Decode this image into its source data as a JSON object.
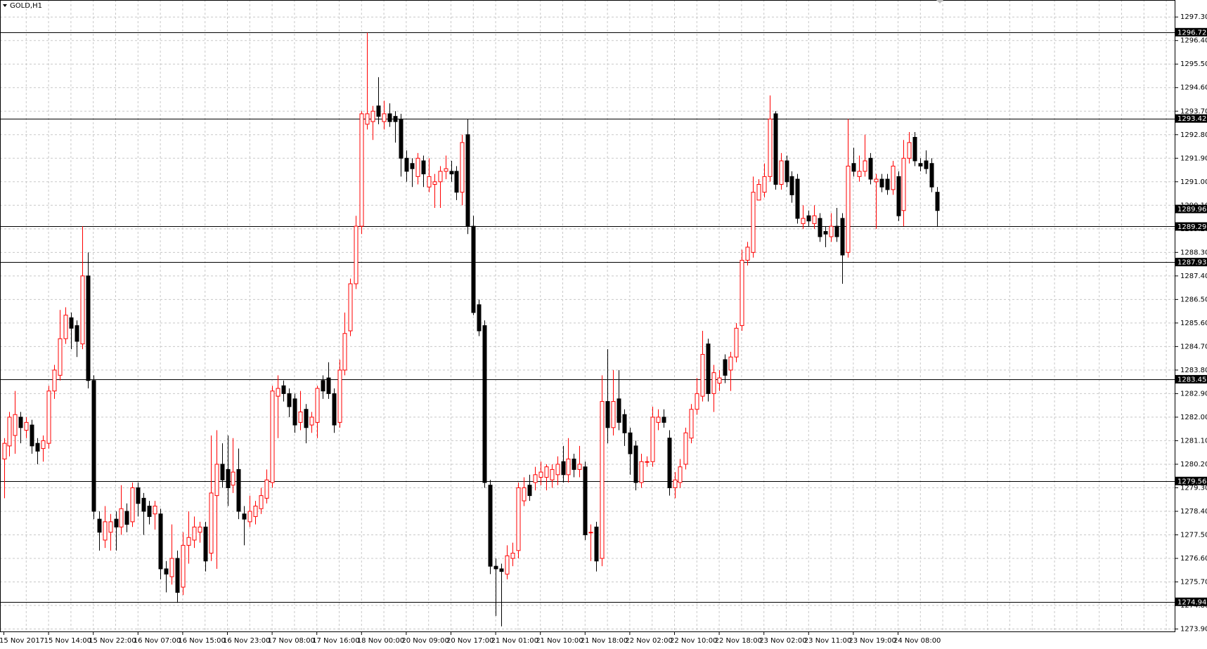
{
  "chart_data": {
    "type": "candlestick",
    "title": "GOLD,H1",
    "up_color": "#ff0000",
    "down_color": "#000000",
    "grid": true,
    "ylim": [
      1273.78,
      1297.95
    ],
    "yticks": [
      {
        "value": 1273.9,
        "label": "1273.90"
      },
      {
        "value": 1274.8,
        "label": "1274.80"
      },
      {
        "value": 1275.7,
        "label": "1275.70"
      },
      {
        "value": 1276.6,
        "label": "1276.60"
      },
      {
        "value": 1277.5,
        "label": "1277.50"
      },
      {
        "value": 1278.4,
        "label": "1278.40"
      },
      {
        "value": 1279.3,
        "label": "1279.30"
      },
      {
        "value": 1280.2,
        "label": "1280.20"
      },
      {
        "value": 1281.1,
        "label": "1281.10"
      },
      {
        "value": 1282.0,
        "label": "1282.00"
      },
      {
        "value": 1282.9,
        "label": "1282.90"
      },
      {
        "value": 1283.8,
        "label": "1283.80"
      },
      {
        "value": 1284.7,
        "label": "1284.70"
      },
      {
        "value": 1285.6,
        "label": "1285.60"
      },
      {
        "value": 1286.5,
        "label": "1286.50"
      },
      {
        "value": 1287.4,
        "label": "1287.40"
      },
      {
        "value": 1288.3,
        "label": "1288.30"
      },
      {
        "value": 1289.2,
        "label": "1289.20"
      },
      {
        "value": 1290.1,
        "label": "1290.10"
      },
      {
        "value": 1291.0,
        "label": "1291.00"
      },
      {
        "value": 1291.9,
        "label": "1291.90"
      },
      {
        "value": 1292.8,
        "label": "1292.80"
      },
      {
        "value": 1293.7,
        "label": "1293.70"
      },
      {
        "value": 1294.6,
        "label": "1294.60"
      },
      {
        "value": 1295.5,
        "label": "1295.50"
      },
      {
        "value": 1296.4,
        "label": "1296.40"
      },
      {
        "value": 1297.3,
        "label": "1297.30"
      }
    ],
    "levels": [
      1296.72,
      1293.42,
      1289.29,
      1287.93,
      1283.45,
      1279.56,
      1274.94
    ],
    "bid": 1289.96,
    "categories": [
      "15 Nov 2017",
      null,
      null,
      null,
      null,
      null,
      null,
      null,
      "15 Nov 14:00",
      null,
      null,
      null,
      null,
      null,
      null,
      null,
      "15 Nov 22:00",
      null,
      null,
      null,
      null,
      null,
      null,
      null,
      "16 Nov 07:00",
      null,
      null,
      null,
      null,
      null,
      null,
      null,
      "16 Nov 15:00",
      null,
      null,
      null,
      null,
      null,
      null,
      null,
      "16 Nov 23:00",
      null,
      null,
      null,
      null,
      null,
      null,
      null,
      "17 Nov 08:00",
      null,
      null,
      null,
      null,
      null,
      null,
      null,
      "17 Nov 16:00",
      null,
      null,
      null,
      null,
      null,
      null,
      null,
      "18 Nov 00:00",
      null,
      null,
      null,
      null,
      null,
      null,
      null,
      "20 Nov 09:00",
      null,
      null,
      null,
      null,
      null,
      null,
      null,
      "20 Nov 17:00",
      null,
      null,
      null,
      null,
      null,
      null,
      null,
      "21 Nov 01:00",
      null,
      null,
      null,
      null,
      null,
      null,
      null,
      "21 Nov 10:00",
      null,
      null,
      null,
      null,
      null,
      null,
      null,
      "21 Nov 18:00",
      null,
      null,
      null,
      null,
      null,
      null,
      null,
      "22 Nov 02:00",
      null,
      null,
      null,
      null,
      null,
      null,
      null,
      "22 Nov 10:00",
      null,
      null,
      null,
      null,
      null,
      null,
      null,
      "22 Nov 18:00",
      null,
      null,
      null,
      null,
      null,
      null,
      null,
      "23 Nov 02:00",
      null,
      null,
      null,
      null,
      null,
      null,
      null,
      "23 Nov 11:00",
      null,
      null,
      null,
      null,
      null,
      null,
      null,
      "23 Nov 19:00",
      null,
      null,
      null,
      null,
      null,
      null,
      null,
      "24 Nov 08:00",
      null,
      null,
      null,
      null,
      null,
      null,
      null
    ],
    "ohlc": [
      [
        1280.4,
        1281.2,
        1278.9,
        1281.0
      ],
      [
        1280.9,
        1282.2,
        1280.5,
        1282.0
      ],
      [
        1281.3,
        1283.0,
        1280.6,
        1282.1
      ],
      [
        1282.0,
        1282.2,
        1281.0,
        1281.6
      ],
      [
        1281.5,
        1282.0,
        1281.2,
        1281.8
      ],
      [
        1281.7,
        1281.9,
        1280.6,
        1280.9
      ],
      [
        1281.0,
        1281.2,
        1280.2,
        1280.7
      ],
      [
        1280.8,
        1281.3,
        1280.3,
        1281.1
      ],
      [
        1281.0,
        1283.2,
        1280.8,
        1283.0
      ],
      [
        1283.0,
        1284.0,
        1282.7,
        1283.8
      ],
      [
        1283.6,
        1286.1,
        1283.4,
        1285.0
      ],
      [
        1285.0,
        1286.2,
        1284.8,
        1285.9
      ],
      [
        1285.8,
        1286.0,
        1284.6,
        1285.4
      ],
      [
        1285.5,
        1285.7,
        1284.3,
        1284.9
      ],
      [
        1284.8,
        1289.3,
        1284.6,
        1287.4
      ],
      [
        1287.4,
        1288.3,
        1283.1,
        1283.4
      ],
      [
        1283.4,
        1283.6,
        1278.1,
        1278.4
      ],
      [
        1278.1,
        1278.4,
        1276.9,
        1277.6
      ],
      [
        1277.3,
        1278.6,
        1277.0,
        1278.0
      ],
      [
        1277.6,
        1278.3,
        1276.9,
        1278.0
      ],
      [
        1278.1,
        1278.4,
        1276.9,
        1277.8
      ],
      [
        1277.8,
        1279.4,
        1277.5,
        1278.5
      ],
      [
        1278.4,
        1278.7,
        1277.6,
        1277.9
      ],
      [
        1278.0,
        1279.5,
        1277.8,
        1279.3
      ],
      [
        1279.3,
        1279.5,
        1278.2,
        1278.7
      ],
      [
        1278.9,
        1279.1,
        1277.5,
        1278.4
      ],
      [
        1278.6,
        1278.8,
        1277.9,
        1278.2
      ],
      [
        1278.3,
        1278.8,
        1277.7,
        1278.6
      ],
      [
        1278.3,
        1278.5,
        1275.8,
        1276.2
      ],
      [
        1276.2,
        1276.5,
        1275.3,
        1276.0
      ],
      [
        1275.9,
        1277.9,
        1275.6,
        1276.6
      ],
      [
        1276.6,
        1276.9,
        1274.9,
        1275.3
      ],
      [
        1275.5,
        1277.6,
        1275.2,
        1277.1
      ],
      [
        1277.1,
        1278.4,
        1276.4,
        1277.4
      ],
      [
        1277.3,
        1278.2,
        1277.0,
        1277.8
      ],
      [
        1277.6,
        1278.0,
        1277.2,
        1277.8
      ],
      [
        1277.8,
        1278.0,
        1276.1,
        1276.5
      ],
      [
        1276.8,
        1281.3,
        1276.5,
        1279.1
      ],
      [
        1279.0,
        1281.5,
        1276.2,
        1280.2
      ],
      [
        1280.2,
        1281.0,
        1279.3,
        1279.6
      ],
      [
        1280.0,
        1281.3,
        1278.6,
        1279.3
      ],
      [
        1279.4,
        1281.2,
        1279.1,
        1279.9
      ],
      [
        1280.0,
        1280.8,
        1278.1,
        1278.4
      ],
      [
        1278.3,
        1278.6,
        1277.1,
        1278.1
      ],
      [
        1278.0,
        1279.0,
        1277.8,
        1278.4
      ],
      [
        1278.2,
        1278.8,
        1277.9,
        1278.6
      ],
      [
        1278.5,
        1279.3,
        1278.3,
        1279.0
      ],
      [
        1278.9,
        1280.0,
        1278.7,
        1279.6
      ],
      [
        1279.5,
        1283.2,
        1279.3,
        1283.0
      ],
      [
        1282.8,
        1283.6,
        1281.2,
        1283.1
      ],
      [
        1283.2,
        1283.4,
        1282.6,
        1282.9
      ],
      [
        1282.9,
        1283.1,
        1282.0,
        1282.4
      ],
      [
        1282.7,
        1282.9,
        1281.4,
        1281.7
      ],
      [
        1281.8,
        1283.0,
        1281.5,
        1282.2
      ],
      [
        1282.3,
        1282.5,
        1281.0,
        1281.6
      ],
      [
        1281.7,
        1282.2,
        1281.4,
        1282.0
      ],
      [
        1281.8,
        1283.2,
        1281.2,
        1283.1
      ],
      [
        1283.4,
        1283.6,
        1282.7,
        1283.0
      ],
      [
        1283.5,
        1284.1,
        1282.7,
        1282.9
      ],
      [
        1282.9,
        1283.1,
        1281.4,
        1281.7
      ],
      [
        1281.8,
        1284.2,
        1281.6,
        1283.8
      ],
      [
        1283.8,
        1286.0,
        1283.6,
        1285.2
      ],
      [
        1285.3,
        1287.3,
        1285.1,
        1287.1
      ],
      [
        1287.1,
        1289.7,
        1286.9,
        1289.3
      ],
      [
        1289.3,
        1293.7,
        1289.0,
        1293.6
      ],
      [
        1293.2,
        1296.7,
        1293.0,
        1293.6
      ],
      [
        1293.3,
        1293.9,
        1292.6,
        1293.7
      ],
      [
        1293.9,
        1295.0,
        1293.2,
        1293.5
      ],
      [
        1293.3,
        1294.1,
        1293.0,
        1293.6
      ],
      [
        1293.6,
        1294.0,
        1293.1,
        1293.3
      ],
      [
        1293.5,
        1293.7,
        1292.5,
        1293.3
      ],
      [
        1293.4,
        1293.6,
        1291.2,
        1291.9
      ],
      [
        1291.9,
        1292.2,
        1291.0,
        1291.4
      ],
      [
        1291.7,
        1291.9,
        1290.8,
        1291.5
      ],
      [
        1291.2,
        1292.1,
        1290.9,
        1291.9
      ],
      [
        1291.8,
        1292.0,
        1290.8,
        1291.3
      ],
      [
        1290.8,
        1291.9,
        1290.6,
        1291.2
      ],
      [
        1290.9,
        1291.3,
        1290.0,
        1291.0
      ],
      [
        1291.0,
        1291.6,
        1290.0,
        1291.4
      ],
      [
        1291.4,
        1292.0,
        1291.1,
        1291.5
      ],
      [
        1291.4,
        1291.8,
        1291.0,
        1291.3
      ],
      [
        1291.4,
        1291.6,
        1290.3,
        1290.6
      ],
      [
        1290.6,
        1292.8,
        1290.1,
        1292.5
      ],
      [
        1292.8,
        1293.4,
        1289.0,
        1289.3
      ],
      [
        1289.3,
        1289.7,
        1285.9,
        1286.0
      ],
      [
        1286.3,
        1286.5,
        1285.1,
        1285.3
      ],
      [
        1285.5,
        1285.7,
        1279.3,
        1279.5
      ],
      [
        1279.4,
        1279.6,
        1276.0,
        1276.3
      ],
      [
        1276.3,
        1276.6,
        1274.4,
        1276.2
      ],
      [
        1276.2,
        1276.4,
        1274.0,
        1276.1
      ],
      [
        1276.0,
        1277.1,
        1275.8,
        1276.7
      ],
      [
        1276.6,
        1277.2,
        1276.3,
        1276.8
      ],
      [
        1276.9,
        1279.5,
        1276.6,
        1279.3
      ],
      [
        1278.8,
        1279.7,
        1278.6,
        1279.3
      ],
      [
        1279.4,
        1279.8,
        1278.8,
        1279.0
      ],
      [
        1279.5,
        1280.1,
        1279.2,
        1279.8
      ],
      [
        1279.7,
        1280.3,
        1279.4,
        1279.9
      ],
      [
        1279.7,
        1280.2,
        1279.2,
        1280.1
      ],
      [
        1279.6,
        1280.2,
        1279.3,
        1280.0
      ],
      [
        1279.8,
        1280.5,
        1279.4,
        1280.2
      ],
      [
        1280.3,
        1280.9,
        1279.5,
        1279.8
      ],
      [
        1279.8,
        1281.2,
        1279.5,
        1280.4
      ],
      [
        1280.4,
        1280.6,
        1279.7,
        1280.0
      ],
      [
        1280.0,
        1280.9,
        1279.7,
        1280.2
      ],
      [
        1280.1,
        1280.3,
        1277.3,
        1277.5
      ],
      [
        1277.6,
        1277.9,
        1276.5,
        1277.6
      ],
      [
        1277.8,
        1278.0,
        1276.1,
        1276.5
      ],
      [
        1276.6,
        1283.6,
        1276.3,
        1282.6
      ],
      [
        1282.6,
        1284.6,
        1281.0,
        1281.6
      ],
      [
        1281.6,
        1283.8,
        1281.3,
        1282.6
      ],
      [
        1282.7,
        1283.8,
        1281.5,
        1281.8
      ],
      [
        1282.1,
        1282.3,
        1280.9,
        1281.4
      ],
      [
        1281.4,
        1281.6,
        1279.8,
        1280.6
      ],
      [
        1280.9,
        1281.1,
        1279.2,
        1279.5
      ],
      [
        1279.5,
        1280.6,
        1279.3,
        1280.3
      ],
      [
        1280.3,
        1280.5,
        1280.1,
        1280.3
      ],
      [
        1280.3,
        1282.4,
        1280.1,
        1282.0
      ],
      [
        1281.8,
        1282.3,
        1281.5,
        1282.0
      ],
      [
        1282.0,
        1282.3,
        1281.6,
        1281.8
      ],
      [
        1281.2,
        1281.5,
        1279.0,
        1279.3
      ],
      [
        1279.3,
        1279.9,
        1278.9,
        1279.6
      ],
      [
        1279.5,
        1280.4,
        1279.3,
        1280.1
      ],
      [
        1280.2,
        1281.6,
        1280.0,
        1281.4
      ],
      [
        1281.2,
        1282.5,
        1281.0,
        1282.3
      ],
      [
        1282.3,
        1283.5,
        1282.1,
        1282.9
      ],
      [
        1282.8,
        1285.3,
        1282.6,
        1284.4
      ],
      [
        1284.8,
        1285.0,
        1282.6,
        1282.9
      ],
      [
        1282.9,
        1284.0,
        1282.2,
        1283.7
      ],
      [
        1283.3,
        1283.8,
        1283.0,
        1283.5
      ],
      [
        1284.2,
        1284.4,
        1283.3,
        1283.6
      ],
      [
        1283.8,
        1284.5,
        1283.0,
        1284.3
      ],
      [
        1284.3,
        1285.6,
        1284.1,
        1285.4
      ],
      [
        1285.5,
        1288.4,
        1285.3,
        1288.0
      ],
      [
        1288.0,
        1288.7,
        1287.8,
        1288.5
      ],
      [
        1288.3,
        1291.2,
        1288.1,
        1290.6
      ],
      [
        1290.3,
        1291.1,
        1290.3,
        1290.9
      ],
      [
        1290.6,
        1291.7,
        1290.4,
        1291.2
      ],
      [
        1291.2,
        1294.3,
        1291.0,
        1293.4
      ],
      [
        1293.6,
        1293.7,
        1290.7,
        1290.9
      ],
      [
        1290.9,
        1292.1,
        1290.7,
        1291.8
      ],
      [
        1291.8,
        1292.0,
        1290.8,
        1291.0
      ],
      [
        1291.2,
        1291.4,
        1290.2,
        1290.5
      ],
      [
        1291.1,
        1291.3,
        1289.4,
        1289.6
      ],
      [
        1289.4,
        1290.1,
        1289.2,
        1289.6
      ],
      [
        1289.7,
        1289.9,
        1289.3,
        1289.5
      ],
      [
        1289.4,
        1290.1,
        1289.2,
        1289.7
      ],
      [
        1289.6,
        1289.8,
        1288.7,
        1288.9
      ],
      [
        1289.1,
        1289.3,
        1288.5,
        1289.0
      ],
      [
        1288.9,
        1289.8,
        1288.7,
        1289.3
      ],
      [
        1289.3,
        1290.0,
        1288.7,
        1288.9
      ],
      [
        1289.6,
        1289.8,
        1287.1,
        1288.2
      ],
      [
        1288.3,
        1293.4,
        1288.1,
        1291.6
      ],
      [
        1291.7,
        1292.3,
        1291.2,
        1291.4
      ],
      [
        1291.2,
        1292.0,
        1291.0,
        1291.4
      ],
      [
        1291.4,
        1292.8,
        1291.2,
        1291.8
      ],
      [
        1291.9,
        1292.1,
        1290.9,
        1291.1
      ],
      [
        1291.0,
        1291.3,
        1289.2,
        1291.1
      ],
      [
        1291.1,
        1291.3,
        1290.6,
        1290.8
      ],
      [
        1291.1,
        1291.3,
        1290.5,
        1290.7
      ],
      [
        1290.7,
        1291.8,
        1290.5,
        1291.6
      ],
      [
        1291.2,
        1291.4,
        1289.5,
        1289.7
      ],
      [
        1289.9,
        1292.6,
        1289.3,
        1291.9
      ],
      [
        1291.9,
        1292.9,
        1291.7,
        1292.5
      ],
      [
        1292.7,
        1292.9,
        1291.6,
        1291.8
      ],
      [
        1291.7,
        1291.9,
        1291.4,
        1291.6
      ],
      [
        1291.8,
        1292.2,
        1291.3,
        1291.5
      ],
      [
        1291.7,
        1291.9,
        1290.6,
        1290.8
      ],
      [
        1290.6,
        1290.8,
        1289.3,
        1289.9
      ]
    ]
  }
}
